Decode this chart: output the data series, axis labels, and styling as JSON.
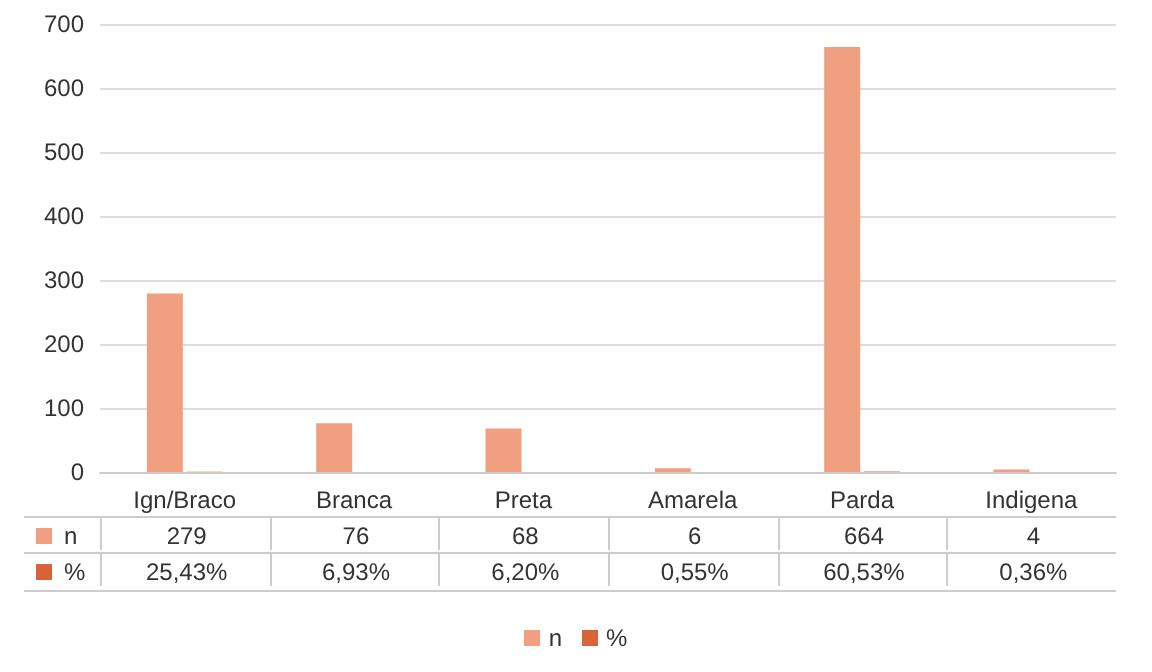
{
  "chart_data": {
    "type": "bar",
    "categories": [
      "Ign/Braco",
      "Branca",
      "Preta",
      "Amarela",
      "Parda",
      "Indigena"
    ],
    "series": [
      {
        "name": "n",
        "color": "#f0a080",
        "values": [
          279,
          76,
          68,
          6,
          664,
          4
        ],
        "value_labels": [
          "279",
          "76",
          "68",
          "6",
          "664",
          "4"
        ]
      },
      {
        "name": "%",
        "color": "#d9643a",
        "values": [
          0.2543,
          0.0693,
          0.062,
          0.0055,
          0.6053,
          0.0036
        ],
        "value_labels": [
          "25,43%",
          "6,93%",
          "6,20%",
          "0,55%",
          "60,53%",
          "0,36%"
        ]
      }
    ],
    "ylim": [
      0,
      700
    ],
    "yticks": [
      0,
      100,
      200,
      300,
      400,
      500,
      600,
      700
    ],
    "grid": "y",
    "legend": "bottom"
  }
}
